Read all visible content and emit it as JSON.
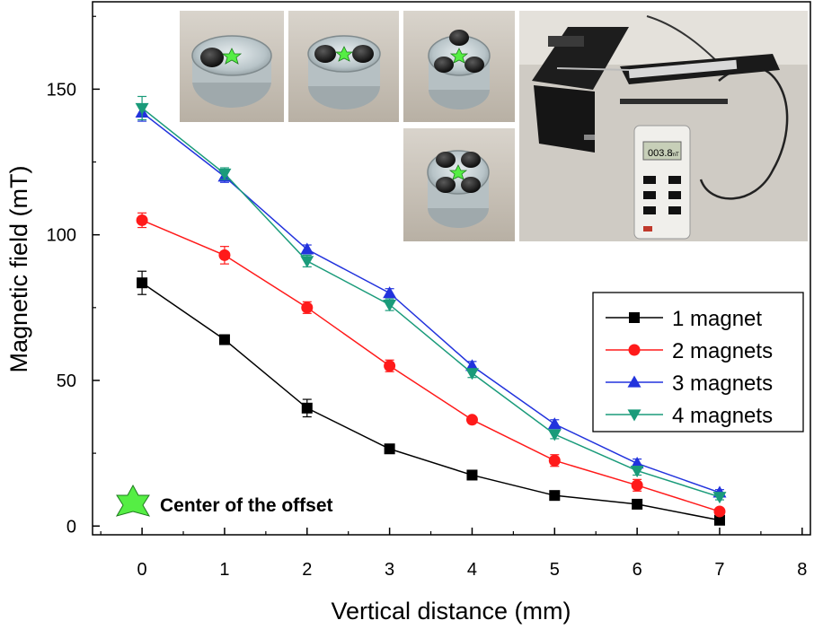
{
  "chart_data": {
    "type": "line",
    "xlabel": "Vertical distance (mm)",
    "ylabel": "Magnetic field (mT)",
    "xlim": [
      -0.6,
      8.1
    ],
    "ylim": [
      -3,
      180
    ],
    "x_ticks": [
      "0",
      "1",
      "2",
      "3",
      "4",
      "5",
      "6",
      "7",
      "8"
    ],
    "y_ticks": [
      "0",
      "50",
      "100",
      "150"
    ],
    "grid": false,
    "legend_position": "right",
    "x": [
      0,
      1,
      2,
      3,
      4,
      5,
      6,
      7
    ],
    "series": [
      {
        "name": "1 magnet",
        "color": "#000000",
        "marker": "square",
        "values": [
          83.5,
          64,
          40.5,
          26.5,
          17.5,
          10.5,
          7.5,
          2
        ],
        "errors": [
          4,
          1,
          3,
          1,
          1,
          1,
          1,
          1
        ]
      },
      {
        "name": "2 magnets",
        "color": "#ff1a1a",
        "marker": "circle",
        "values": [
          105,
          93,
          75,
          55,
          36.5,
          22.5,
          14,
          5
        ],
        "errors": [
          2.5,
          3,
          2,
          2,
          1,
          2,
          2,
          1
        ]
      },
      {
        "name": "3 magnets",
        "color": "#2233dd",
        "marker": "triangle-up",
        "values": [
          142,
          120,
          95,
          80,
          55,
          35,
          21.5,
          11.5
        ],
        "errors": [
          3,
          2,
          1.5,
          1.5,
          1.5,
          1.5,
          1.5,
          1
        ]
      },
      {
        "name": "4 magnets",
        "color": "#1a9b7a",
        "marker": "triangle-down",
        "values": [
          143.5,
          121,
          91,
          76,
          52.5,
          31.5,
          19,
          10
        ],
        "errors": [
          4,
          2,
          2,
          2,
          1.5,
          1.5,
          1.5,
          1
        ]
      }
    ],
    "annotation": {
      "text": "Center of the offset",
      "icon": "green-star-icon",
      "icon_color": "#55ee44"
    },
    "inset_photos": [
      {
        "name": "one-magnet-photo",
        "magnets": 1
      },
      {
        "name": "two-magnets-photo",
        "magnets": 2
      },
      {
        "name": "three-magnets-photo",
        "magnets": 3
      },
      {
        "name": "four-magnets-photo",
        "magnets": 4
      },
      {
        "name": "syringe-pump-gaussmeter-photo",
        "device_readout": "003.8",
        "device_unit": "mT"
      }
    ]
  }
}
